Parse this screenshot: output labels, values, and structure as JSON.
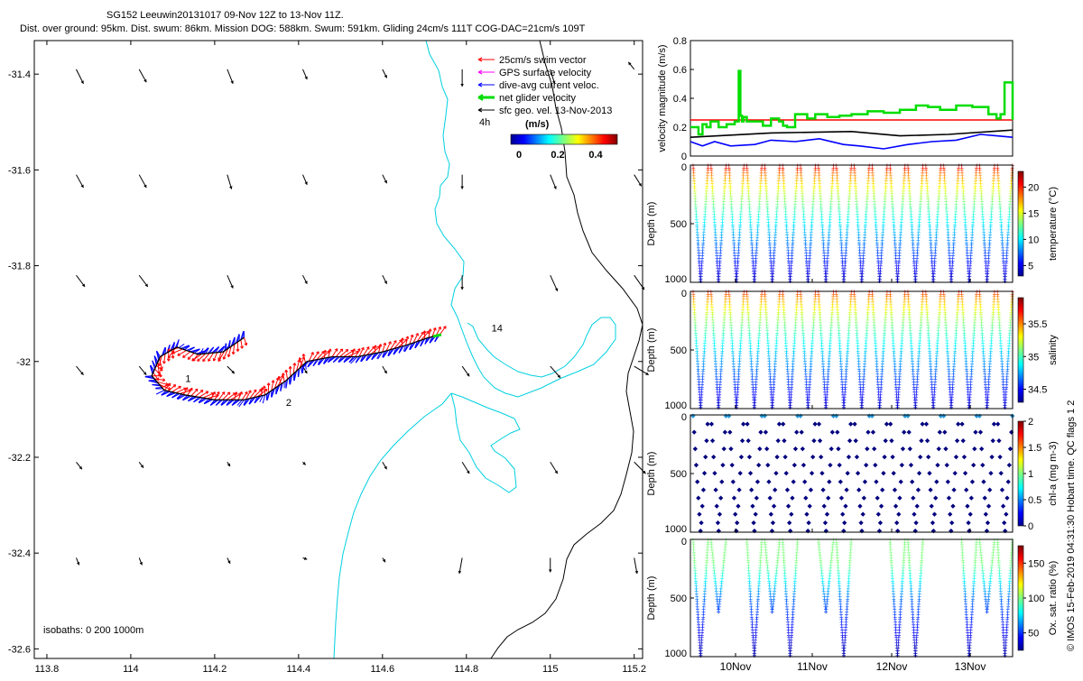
{
  "header": {
    "title": "SG152 Leeuwin20131017 09-Nov 12Z to 13-Nov 11Z.",
    "subtitle": "Dist. over ground: 95km. Dist. swum: 86km. Mission DOG: 588km. Swum: 591km. Gliding 24cm/s 111T COG-DAC=21cm/s 109T"
  },
  "colors": {
    "swim": "#ff0000",
    "gps": "#ff00ff",
    "dac": "#0000ff",
    "net": "#00dd00",
    "geo": "#000000",
    "isobath_shallow": "#00d0e0",
    "isobath_deep": "#000000"
  },
  "chart_data": [
    {
      "type": "scatter",
      "panel": "map",
      "xlabel": "",
      "ylabel": "",
      "xlim": [
        113.77,
        115.22
      ],
      "ylim": [
        -32.62,
        -31.33
      ],
      "x_ticks": [
        113.8,
        114,
        114.2,
        114.4,
        114.6,
        114.8,
        115,
        115.2
      ],
      "x_tick_labels": [
        "113.8",
        "114",
        "114.2",
        "114.4",
        "114.6",
        "114.8",
        "115",
        "115.2"
      ],
      "y_ticks": [
        -31.4,
        -31.6,
        -31.8,
        -32,
        -32.2,
        -32.4,
        -32.6
      ],
      "y_tick_labels": [
        "-31.4",
        "-31.6",
        "-31.8",
        "-32",
        "-32.2",
        "-32.4",
        "-32.6"
      ],
      "legend": {
        "position": "top-right",
        "entries": [
          {
            "label": "25cm/s swim vector",
            "color_key": "swim"
          },
          {
            "label": "GPS surface velocity",
            "color_key": "gps"
          },
          {
            "label": "dive-avg current veloc.",
            "color_key": "dac"
          },
          {
            "label": "net glider velocity",
            "color_key": "net"
          },
          {
            "label": "sfc geo. vel. 13-Nov-2013",
            "color_key": "geo"
          }
        ],
        "scale_label": "4h",
        "colorbar_title": "(m/s)",
        "colorbar_ticks": [
          "0",
          "0.2",
          "0.4"
        ]
      },
      "isobath_label": "isobaths: 0   200  1000m",
      "track": {
        "lon": [
          114.27,
          114.22,
          114.16,
          114.11,
          114.07,
          114.05,
          114.08,
          114.13,
          114.2,
          114.27,
          114.32,
          114.37,
          114.42,
          114.48,
          114.54,
          114.6,
          114.66,
          114.71,
          114.74
        ],
        "lat": [
          -31.95,
          -31.98,
          -31.985,
          -31.97,
          -31.99,
          -32.03,
          -32.06,
          -32.07,
          -32.08,
          -32.08,
          -32.07,
          -32.04,
          -32.0,
          -31.99,
          -31.99,
          -31.98,
          -31.965,
          -31.95,
          -31.944
        ]
      },
      "day_labels": [
        {
          "text": "1",
          "lon": 114.13,
          "lat": -32.035
        },
        {
          "text": "2",
          "lon": 114.37,
          "lat": -32.085
        },
        {
          "text": "14",
          "lon": 114.86,
          "lat": -31.93
        }
      ],
      "geo_vectors": {
        "lon": [
          113.87,
          114.02,
          114.23,
          114.41,
          114.6,
          114.79,
          115.0,
          115.2
        ],
        "lat": [
          -31.39,
          -31.61,
          -31.82,
          -32.01,
          -32.21,
          -32.41
        ],
        "u": [
          [
            0.01,
            0.01,
            0.008,
            0.006,
            0.006,
            0.0,
            0.006,
            -0.008
          ],
          [
            0.01,
            0.01,
            0.006,
            0.006,
            0.006,
            0.0,
            0.008,
            0.01
          ],
          [
            0.012,
            0.012,
            0.008,
            0.006,
            0.006,
            0.0,
            0.01,
            0.014
          ],
          [
            0.01,
            0.01,
            0.01,
            0.006,
            0.006,
            0.01,
            0.014,
            0.02
          ],
          [
            0.008,
            0.006,
            0.004,
            0.004,
            0.006,
            0.01,
            0.01,
            0.016
          ],
          [
            0.004,
            0.004,
            0.004,
            0.006,
            0.004,
            -0.004,
            0.0,
            0.004
          ]
        ],
        "v": [
          [
            -0.02,
            -0.018,
            -0.02,
            -0.014,
            -0.012,
            -0.024,
            -0.02,
            0.01
          ],
          [
            -0.018,
            -0.018,
            -0.02,
            -0.014,
            -0.012,
            -0.02,
            -0.02,
            -0.016
          ],
          [
            -0.016,
            -0.016,
            -0.018,
            -0.012,
            -0.012,
            -0.02,
            -0.022,
            -0.02
          ],
          [
            -0.012,
            -0.012,
            -0.01,
            -0.01,
            -0.01,
            -0.014,
            -0.016,
            -0.012
          ],
          [
            -0.01,
            -0.008,
            -0.006,
            -0.004,
            -0.01,
            -0.016,
            -0.016,
            -0.016
          ],
          [
            -0.01,
            -0.01,
            -0.008,
            -0.002,
            -0.006,
            -0.022,
            -0.02,
            -0.022
          ]
        ]
      }
    },
    {
      "type": "line",
      "panel": "velocity",
      "xlabel": "",
      "ylabel": "velocity magnitude (m/s)",
      "xlim": [
        0,
        4
      ],
      "ylim": [
        0,
        0.8
      ],
      "y_ticks": [
        0,
        0.2,
        0.4,
        0.6,
        0.8
      ],
      "y_tick_labels": [
        "0",
        "0.2",
        "0.4",
        "0.6",
        "0.8"
      ],
      "series": [
        {
          "color_key": "swim",
          "x": [
            0,
            4
          ],
          "y": [
            0.25,
            0.25
          ]
        },
        {
          "color_key": "geo",
          "x": [
            0,
            1,
            2,
            2.6,
            3.2,
            4
          ],
          "y": [
            0.13,
            0.16,
            0.17,
            0.14,
            0.15,
            0.18
          ]
        },
        {
          "color_key": "dac",
          "x": [
            0,
            0.15,
            0.3,
            0.5,
            0.8,
            1.0,
            1.3,
            1.6,
            1.9,
            2.1,
            2.4,
            2.7,
            3.0,
            3.3,
            3.6,
            3.8,
            4.0
          ],
          "y": [
            0.1,
            0.07,
            0.1,
            0.07,
            0.08,
            0.11,
            0.1,
            0.12,
            0.08,
            0.07,
            0.05,
            0.08,
            0.1,
            0.11,
            0.15,
            0.14,
            0.13
          ]
        },
        {
          "color_key": "net",
          "x": [
            0,
            0.05,
            0.1,
            0.15,
            0.2,
            0.25,
            0.35,
            0.45,
            0.55,
            0.6,
            0.62,
            0.64,
            0.66,
            0.7,
            0.8,
            0.9,
            1.0,
            1.1,
            1.15,
            1.2,
            1.3,
            1.45,
            1.55,
            1.7,
            1.85,
            2.0,
            2.2,
            2.4,
            2.6,
            2.8,
            2.95,
            3.1,
            3.3,
            3.5,
            3.7,
            3.8,
            3.85,
            3.9,
            4.0
          ],
          "y": [
            0.2,
            0.2,
            0.15,
            0.22,
            0.2,
            0.24,
            0.2,
            0.22,
            0.24,
            0.59,
            0.28,
            0.24,
            0.27,
            0.24,
            0.24,
            0.21,
            0.26,
            0.24,
            0.21,
            0.2,
            0.29,
            0.26,
            0.29,
            0.27,
            0.28,
            0.29,
            0.31,
            0.3,
            0.32,
            0.35,
            0.34,
            0.32,
            0.35,
            0.34,
            0.29,
            0.26,
            0.29,
            0.51,
            0.25
          ]
        }
      ]
    },
    {
      "type": "scatter",
      "panel": "temperature",
      "ylabel": "Depth (m)",
      "ylim": [
        1000,
        0
      ],
      "y_tick_labels": [
        "0",
        "500",
        "1000"
      ],
      "colorbar": {
        "label": "temperature (°C)",
        "range": [
          3,
          23
        ],
        "ticks": [
          "5",
          "10",
          "15",
          "20"
        ]
      },
      "dives": 18,
      "values": {
        "surface": 22,
        "bottom": 4
      }
    },
    {
      "type": "scatter",
      "panel": "salinity",
      "ylabel": "Depth (m)",
      "ylim": [
        1000,
        0
      ],
      "y_tick_labels": [
        "0",
        "500",
        "1000"
      ],
      "colorbar": {
        "label": "salinity",
        "range": [
          34.3,
          35.9
        ],
        "ticks": [
          "34.5",
          "35",
          "35.5"
        ]
      },
      "dives": 18,
      "values": {
        "surface": 35.7,
        "bottom": 34.4
      }
    },
    {
      "type": "scatter",
      "panel": "chla",
      "ylabel": "Depth (m)",
      "ylim": [
        1000,
        0
      ],
      "y_tick_labels": [
        "0",
        "500",
        "1000"
      ],
      "colorbar": {
        "label": "chl-a (mg m-3)",
        "range": [
          0,
          2
        ],
        "ticks": [
          "0",
          "0.5",
          "1",
          "1.5",
          "2"
        ]
      },
      "dives": 18,
      "values": {
        "surface": 0.1,
        "bottom": 0.0
      }
    },
    {
      "type": "scatter",
      "panel": "oxygen",
      "ylabel": "Depth (m)",
      "xlabel": "",
      "ylim": [
        1000,
        0
      ],
      "y_tick_labels": [
        "0",
        "500",
        "1000"
      ],
      "x_tick_labels": [
        "10Nov",
        "11Nov",
        "12Nov",
        "13Nov"
      ],
      "colorbar": {
        "label": "Ox. sat. ratio (%)",
        "range": [
          25,
          175
        ],
        "ticks": [
          "50",
          "100",
          "150"
        ]
      },
      "dives": 18,
      "values": {
        "surface": 100,
        "bottom": 35
      }
    }
  ],
  "side_text": "© IMOS 15-Feb-2019 04:31:30 Hobart time. QC flags 1  2"
}
